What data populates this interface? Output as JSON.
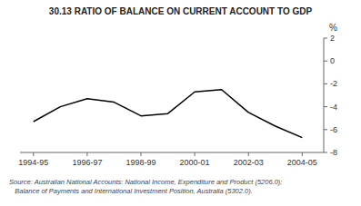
{
  "chart_data": {
    "type": "line",
    "title": "30.13   RATIO OF BALANCE ON CURRENT ACCOUNT TO GDP",
    "ylabel": "%",
    "annotations": [
      "Source: Australian National Accounts: National Income, Expenditure and Product (5206.0);",
      "   Balance of Payments and International Investment Position, Australia (5302.0)."
    ],
    "x": [
      1994.5,
      1995.5,
      1996.5,
      1997.5,
      1998.5,
      1999.5,
      2000.5,
      2001.5,
      2002.5,
      2003.5,
      2004.5
    ],
    "values": [
      -5.3,
      -4.0,
      -3.3,
      -3.6,
      -4.8,
      -4.6,
      -2.7,
      -2.5,
      -4.5,
      -5.7,
      -6.7
    ],
    "color": "#000000",
    "xlim": [
      1994.0,
      2005.3
    ],
    "xticks": [
      {
        "value": 1994.5,
        "label": "1994-95"
      },
      {
        "value": 1996.5,
        "label": "1996-97"
      },
      {
        "value": 1998.5,
        "label": "1998-99"
      },
      {
        "value": 2000.5,
        "label": "2000-01"
      },
      {
        "value": 2002.5,
        "label": "2002-03"
      },
      {
        "value": 2004.5,
        "label": "2004-05"
      }
    ],
    "ylim": [
      -8,
      2
    ],
    "yticks": [
      -8,
      -6,
      -4,
      -2,
      0,
      2
    ],
    "grid": false
  }
}
